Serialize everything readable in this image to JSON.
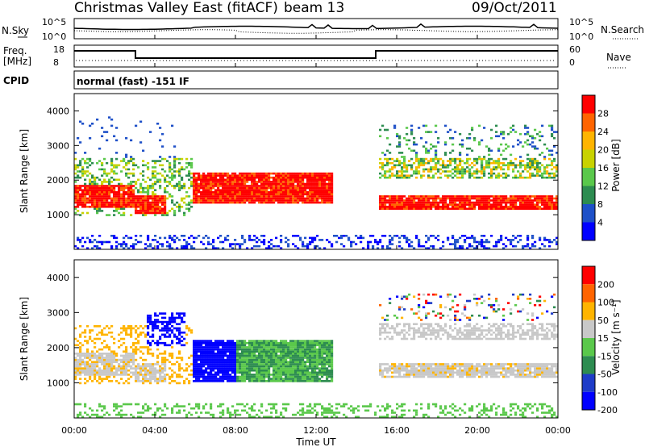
{
  "header": {
    "title": "Christmas Valley East (fitACF)",
    "beam": "beam 13",
    "date": "09/Oct/2011"
  },
  "top_panels": {
    "nsky_label": "N.Sky",
    "nsky_ticks": [
      "10^5",
      "10^0"
    ],
    "nsearch_label": "N.Search",
    "nsearch_ticks": [
      "10^5",
      "10^0"
    ],
    "freq_label": "Freq.",
    "freq_unit": "[MHz]",
    "freq_ticks": [
      "18",
      "8"
    ],
    "nave_label": "Nave",
    "nave_ticks": [
      "60",
      "0"
    ],
    "cpid_label": "CPID",
    "cpid_value": "normal (fast) -151 IF"
  },
  "chart_data": [
    {
      "type": "heatmap",
      "name": "power",
      "ylabel": "Slant Range [km]",
      "xlabel": "Time UT",
      "x_range_hours": [
        0,
        24
      ],
      "ylim": [
        0,
        4500
      ],
      "y_ticks": [
        "1000",
        "2000",
        "3000",
        "4000"
      ],
      "x_ticks": [
        "00:00",
        "04:00",
        "08:00",
        "12:00",
        "16:00",
        "20:00",
        "00:00"
      ],
      "colorbar_label": "Power [dB]",
      "colorbar_ticks": [
        "4",
        "8",
        "12",
        "16",
        "20",
        "24",
        "28"
      ],
      "colorbar_colors": [
        "#0000ff",
        "#1e50c8",
        "#2d8c50",
        "#5ac84b",
        "#c8d200",
        "#ffb400",
        "#ff6400",
        "#ff0000"
      ],
      "bands": [
        {
          "t0": 0.0,
          "t1": 3.0,
          "r0": 1200,
          "r1": 1800,
          "level": "high"
        },
        {
          "t0": 3.0,
          "t1": 4.5,
          "r0": 1000,
          "r1": 1500,
          "level": "high"
        },
        {
          "t0": 5.8,
          "t1": 12.8,
          "r0": 1300,
          "r1": 2200,
          "level": "high"
        },
        {
          "t0": 15.0,
          "t1": 24.0,
          "r0": 1100,
          "r1": 1500,
          "level": "high"
        }
      ]
    },
    {
      "type": "heatmap",
      "name": "velocity",
      "ylabel": "Slant Range [km]",
      "xlabel": "Time UT",
      "x_range_hours": [
        0,
        24
      ],
      "ylim": [
        0,
        4500
      ],
      "y_ticks": [
        "1000",
        "2000",
        "3000",
        "4000"
      ],
      "x_ticks": [
        "00:00",
        "04:00",
        "08:00",
        "12:00",
        "16:00",
        "20:00",
        "00:00"
      ],
      "colorbar_label": "Velocity [m s⁻¹]",
      "colorbar_ticks": [
        "200",
        "100",
        "50",
        "15",
        "-15",
        "-50",
        "-100",
        "-200"
      ],
      "colorbar_colors": [
        "#0000ff",
        "#1e3cc8",
        "#2d8c50",
        "#5ac84b",
        "#c8c8c8",
        "#ffb400",
        "#ff6400",
        "#ff0000"
      ]
    }
  ],
  "xlabel": "Time UT"
}
